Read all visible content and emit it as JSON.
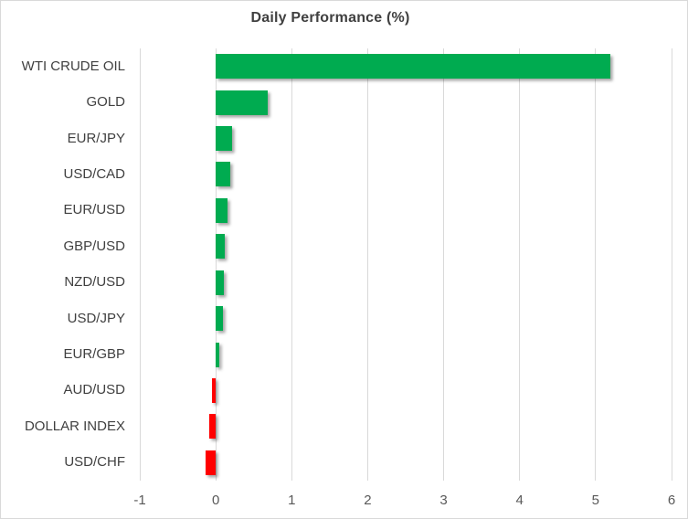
{
  "chart_data": {
    "type": "bar",
    "orientation": "horizontal",
    "title": "Daily Performance (%)",
    "categories": [
      "WTI CRUDE OIL",
      "GOLD",
      "EUR/JPY",
      "USD/CAD",
      "EUR/USD",
      "GBP/USD",
      "NZD/USD",
      "USD/JPY",
      "EUR/GBP",
      "AUD/USD",
      "DOLLAR INDEX",
      "USD/CHF"
    ],
    "values": [
      5.2,
      0.68,
      0.21,
      0.19,
      0.15,
      0.12,
      0.11,
      0.09,
      0.05,
      -0.05,
      -0.08,
      -0.13
    ],
    "xlabel": "",
    "ylabel": "",
    "xlim": [
      -1,
      6
    ],
    "x_ticks": [
      -1,
      0,
      1,
      2,
      3,
      4,
      5,
      6
    ],
    "grid": "vertical-only",
    "legend": "none",
    "colors": {
      "positive": "#00AB50",
      "negative": "#FF0000",
      "gridline": "#D9D9D9",
      "title_text": "#404040",
      "category_text": "#404040",
      "tick_text": "#595959",
      "background": "#FFFFFF",
      "border": "#D9D9D9"
    }
  }
}
